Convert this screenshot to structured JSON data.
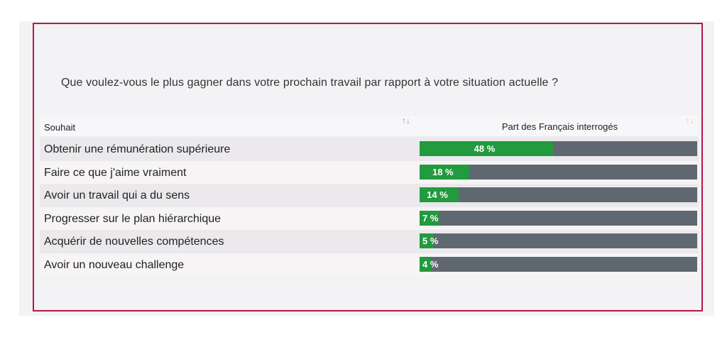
{
  "title": "Que voulez-vous le plus gagner dans votre prochain travail par rapport à votre situation actuelle ?",
  "columns": [
    "Souhait",
    "Part des Français interrogés"
  ],
  "colors": {
    "fill": "#229a3e",
    "track": "#5f6870",
    "border": "#b5174a"
  },
  "chart_data": {
    "type": "bar",
    "title": "Que voulez-vous le plus gagner dans votre prochain travail par rapport à votre situation actuelle ?",
    "categories": [
      "Obtenir une rémunération supérieure",
      "Faire ce que j'aime vraiment",
      "Avoir un travail qui a du sens",
      "Progresser sur le plan hiérarchique",
      "Acquérir de nouvelles compétences",
      "Avoir un nouveau challenge"
    ],
    "values": [
      48,
      18,
      14,
      7,
      5,
      4
    ],
    "labels": [
      "48 %",
      "18 %",
      "14 %",
      "7 %",
      "5 %",
      "4 %"
    ],
    "xlabel": "Souhait",
    "ylabel": "Part des Français interrogés",
    "ylim": [
      0,
      100
    ]
  }
}
